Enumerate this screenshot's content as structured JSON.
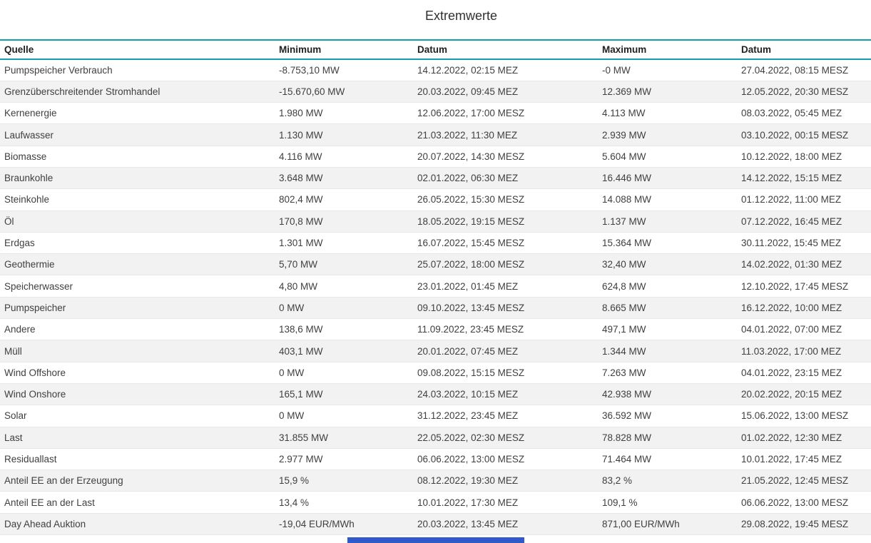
{
  "title": "Extremwerte",
  "colors": {
    "header_border": "#13A0A8",
    "alt_row": "#F2F2F2",
    "divider": "#E8E8E8",
    "text": "#3F3F3F",
    "header_text": "#212121",
    "scrollbar_thumb": "#2E5BC9"
  },
  "table": {
    "headers": [
      "Quelle",
      "Minimum",
      "Datum",
      "Maximum",
      "Datum"
    ],
    "rows": [
      [
        "Pumpspeicher Verbrauch",
        "-8.753,10 MW",
        "14.12.2022, 02:15 MEZ",
        "-0 MW",
        "27.04.2022, 08:15 MESZ"
      ],
      [
        "Grenzüberschreitender Stromhandel",
        "-15.670,60 MW",
        "20.03.2022, 09:45 MEZ",
        "12.369 MW",
        "12.05.2022, 20:30 MESZ"
      ],
      [
        "Kernenergie",
        "1.980 MW",
        "12.06.2022, 17:00 MESZ",
        "4.113 MW",
        "08.03.2022, 05:45 MEZ"
      ],
      [
        "Laufwasser",
        "1.130 MW",
        "21.03.2022, 11:30 MEZ",
        "2.939 MW",
        "03.10.2022, 00:15 MESZ"
      ],
      [
        "Biomasse",
        "4.116 MW",
        "20.07.2022, 14:30 MESZ",
        "5.604 MW",
        "10.12.2022, 18:00 MEZ"
      ],
      [
        "Braunkohle",
        "3.648 MW",
        "02.01.2022, 06:30 MEZ",
        "16.446 MW",
        "14.12.2022, 15:15 MEZ"
      ],
      [
        "Steinkohle",
        "802,4 MW",
        "26.05.2022, 15:30 MESZ",
        "14.088 MW",
        "01.12.2022, 11:00 MEZ"
      ],
      [
        "Öl",
        "170,8 MW",
        "18.05.2022, 19:15 MESZ",
        "1.137 MW",
        "07.12.2022, 16:45 MEZ"
      ],
      [
        "Erdgas",
        "1.301 MW",
        "16.07.2022, 15:45 MESZ",
        "15.364 MW",
        "30.11.2022, 15:45 MEZ"
      ],
      [
        "Geothermie",
        "5,70 MW",
        "25.07.2022, 18:00 MESZ",
        "32,40 MW",
        "14.02.2022, 01:30 MEZ"
      ],
      [
        "Speicherwasser",
        "4,80 MW",
        "23.01.2022, 01:45 MEZ",
        "624,8 MW",
        "12.10.2022, 17:45 MESZ"
      ],
      [
        "Pumpspeicher",
        "0 MW",
        "09.10.2022, 13:45 MESZ",
        "8.665 MW",
        "16.12.2022, 10:00 MEZ"
      ],
      [
        "Andere",
        "138,6 MW",
        "11.09.2022, 23:45 MESZ",
        "497,1 MW",
        "04.01.2022, 07:00 MEZ"
      ],
      [
        "Müll",
        "403,1 MW",
        "20.01.2022, 07:45 MEZ",
        "1.344 MW",
        "11.03.2022, 17:00 MEZ"
      ],
      [
        "Wind Offshore",
        "0 MW",
        "09.08.2022, 15:15 MESZ",
        "7.263 MW",
        "04.01.2022, 23:15 MEZ"
      ],
      [
        "Wind Onshore",
        "165,1 MW",
        "24.03.2022, 10:15 MEZ",
        "42.938 MW",
        "20.02.2022, 20:15 MEZ"
      ],
      [
        "Solar",
        "0 MW",
        "31.12.2022, 23:45 MEZ",
        "36.592 MW",
        "15.06.2022, 13:00 MESZ"
      ],
      [
        "Last",
        "31.855 MW",
        "22.05.2022, 02:30 MESZ",
        "78.828 MW",
        "01.02.2022, 12:30 MEZ"
      ],
      [
        "Residuallast",
        "2.977 MW",
        "06.06.2022, 13:00 MESZ",
        "71.464 MW",
        "10.01.2022, 17:45 MEZ"
      ],
      [
        "Anteil EE an der Erzeugung",
        "15,9 %",
        "08.12.2022, 19:30 MEZ",
        "83,2 %",
        "21.05.2022, 12:45 MESZ"
      ],
      [
        "Anteil EE an der Last",
        "13,4 %",
        "10.01.2022, 17:30 MEZ",
        "109,1 %",
        "06.06.2022, 13:00 MESZ"
      ],
      [
        "Day Ahead Auktion",
        "-19,04 EUR/MWh",
        "20.03.2022, 13:45 MEZ",
        "871,00 EUR/MWh",
        "29.08.2022, 19:45 MESZ"
      ]
    ]
  }
}
